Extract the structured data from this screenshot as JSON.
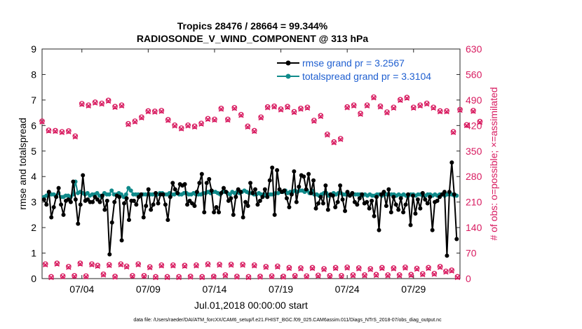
{
  "chart_data": {
    "type": "line",
    "title_line1": "Tropics 28476 / 28664 = 99.344%",
    "title_line2": "RADIOSONDE_V_WIND_COMPONENT @ 313 hPa",
    "xlabel": "Jul.01,2018 00:00:00 start",
    "ylabel_left": "rmse and totalspread",
    "ylabel_right": "# of obs: o=possible; ×=assimilated",
    "footer": "data file: /Users/raeder/DAI/ATM_forcXX/CAM6_setup/f.e21.FHIST_BGC.f09_025.CAM6assim.011/Diags_NTrS_2018-07/obs_diag_output.nc",
    "xlim": [
      1,
      32.5
    ],
    "ylim_left": [
      0,
      9
    ],
    "ylim_right": [
      0,
      630
    ],
    "x_ticks": [
      {
        "x": 4,
        "label": "07/04"
      },
      {
        "x": 9,
        "label": "07/09"
      },
      {
        "x": 14,
        "label": "07/14"
      },
      {
        "x": 19,
        "label": "07/19"
      },
      {
        "x": 24,
        "label": "07/24"
      },
      {
        "x": 29,
        "label": "07/29"
      }
    ],
    "y_ticks_left": [
      "0",
      "1",
      "2",
      "3",
      "4",
      "5",
      "6",
      "7",
      "8",
      "9"
    ],
    "y_ticks_right": [
      "0",
      "70",
      "140",
      "210",
      "280",
      "350",
      "420",
      "490",
      "560",
      "630"
    ],
    "colors": {
      "rmse": "#000000",
      "spread": "#0f8a8a",
      "obs": "#d81b60",
      "legend_text": "#1f5fd0"
    },
    "legend": [
      {
        "name": "rmse grand pr = 3.2567"
      },
      {
        "name": "totalspread grand pr = 3.3104"
      }
    ],
    "rmse": [
      3.1,
      2.9,
      3.4,
      2.4,
      2.8,
      3.2,
      3.55,
      2.9,
      2.5,
      3.05,
      3.1,
      3.0,
      3.8,
      3.1,
      2.15,
      2.9,
      4.05,
      3.05,
      3.1,
      3.0,
      3.0,
      3.2,
      3.1,
      3.0,
      3.25,
      2.7,
      3.05,
      0.95,
      2.2,
      3.0,
      3.25,
      3.2,
      1.5,
      2.95,
      3.15,
      2.3,
      3.05,
      3.05,
      2.9,
      3.2,
      3.3,
      2.4,
      2.85,
      3.5,
      2.7,
      2.9,
      3.35,
      2.95,
      3.3,
      3.3,
      2.9,
      2.3,
      3.2,
      3.75,
      3.5,
      3.35,
      3.7,
      3.65,
      3.7,
      2.9,
      3.05,
      2.95,
      2.85,
      3.4,
      3.75,
      4.1,
      2.6,
      3.75,
      3.9,
      3.45,
      2.6,
      2.8,
      2.6,
      3.35,
      3.55,
      3.4,
      3.05,
      3.15,
      2.5,
      3.2,
      3.5,
      3.4,
      2.4,
      3.0,
      2.85,
      3.75,
      3.35,
      3.5,
      2.9,
      3.05,
      3.2,
      3.5,
      3.2,
      3.85,
      4.35,
      2.5,
      4.25,
      3.5,
      3.4,
      3.45,
      3.15,
      2.8,
      3.3,
      4.2,
      3.0,
      3.6,
      4.05,
      4.0,
      3.5,
      4.1,
      3.35,
      3.85,
      2.75,
      2.95,
      3.2,
      2.95,
      3.65,
      2.7,
      3.3,
      3.25,
      2.8,
      3.0,
      3.65,
      3.1,
      2.65,
      3.4,
      3.25,
      3.35,
      3.0,
      2.9,
      3.15,
      3.3,
      2.95,
      3.0,
      2.75,
      3.05,
      2.45,
      3.2,
      1.9,
      3.3,
      3.4,
      2.85,
      3.5,
      2.6,
      3.2,
      2.9,
      2.7,
      3.15,
      2.6,
      2.9,
      3.3,
      2.1,
      3.25,
      2.55,
      3.1,
      2.75,
      3.35,
      3.1,
      2.95,
      3.2,
      1.9,
      3.0,
      3.05,
      3.2,
      3.3,
      3.4,
      0.9,
      3.4,
      4.55,
      3.3,
      1.55
    ],
    "spread": [
      3.2,
      3.25,
      3.35,
      3.3,
      3.3,
      3.25,
      3.35,
      3.2,
      3.2,
      3.25,
      3.25,
      3.2,
      3.3,
      3.8,
      3.35,
      3.4,
      3.35,
      3.3,
      3.35,
      3.25,
      3.3,
      3.3,
      3.35,
      3.25,
      3.2,
      3.35,
      3.3,
      3.3,
      3.45,
      3.3,
      3.3,
      3.35,
      3.3,
      3.2,
      3.3,
      3.55,
      3.45,
      3.3,
      3.3,
      3.3,
      3.25,
      3.3,
      3.3,
      3.3,
      3.3,
      3.3,
      3.3,
      3.3,
      3.35,
      3.35,
      3.3,
      3.3,
      3.35,
      3.3,
      3.3,
      3.35,
      3.3,
      3.3,
      3.35,
      3.35,
      3.3,
      3.3,
      3.35,
      3.3,
      3.3,
      3.3,
      3.35,
      3.35,
      3.4,
      3.35,
      3.4,
      3.4,
      3.35,
      3.3,
      3.4,
      3.4,
      3.35,
      3.3,
      3.4,
      3.35,
      3.4,
      3.35,
      3.4,
      3.45,
      3.4,
      3.35,
      3.35,
      3.3,
      3.3,
      3.35,
      3.3,
      3.3,
      3.25,
      3.3,
      3.3,
      3.3,
      3.35,
      3.35,
      3.4,
      3.4,
      3.45,
      3.35,
      3.4,
      3.4,
      3.45,
      3.4,
      3.45,
      3.45,
      3.4,
      3.45,
      3.35,
      3.45,
      3.3,
      3.3,
      3.25,
      3.3,
      3.35,
      3.35,
      3.25,
      3.3,
      3.35,
      3.3,
      3.35,
      3.35,
      3.3,
      3.3,
      3.3,
      3.3,
      3.3,
      3.3,
      3.3,
      3.3,
      3.25,
      3.3,
      3.25,
      3.3,
      3.25,
      3.25,
      3.3,
      3.3,
      3.25,
      3.35,
      3.3,
      3.3,
      3.3,
      3.3,
      3.25,
      3.3,
      3.25,
      3.3,
      3.25,
      3.25,
      3.3,
      3.3,
      3.25,
      3.3,
      3.3,
      3.25,
      3.25,
      3.3,
      3.3,
      3.25,
      3.3,
      3.25,
      3.3,
      3.3,
      3.25,
      3.3,
      3.3,
      3.3,
      3.25,
      3.25
    ],
    "obs_possible_00z": [
      432,
      407,
      406,
      403,
      405,
      391,
      480,
      476,
      484,
      481,
      489,
      472,
      476,
      425,
      432,
      443,
      460,
      459,
      461,
      436,
      421,
      413,
      421,
      418,
      426,
      439,
      437,
      467,
      437,
      469,
      450,
      418,
      406,
      443,
      471,
      473,
      465,
      472,
      458,
      467,
      470,
      434,
      447,
      396,
      375,
      384,
      471,
      476,
      453,
      476,
      498,
      473,
      457,
      470,
      491,
      497,
      470,
      476,
      481,
      470,
      460,
      460,
      403,
      464,
      422,
      461,
      431
    ],
    "obs_assim_00z": [
      430,
      405,
      404,
      401,
      403,
      389,
      478,
      474,
      482,
      479,
      487,
      470,
      474,
      423,
      430,
      441,
      458,
      457,
      459,
      434,
      419,
      411,
      419,
      416,
      424,
      437,
      435,
      465,
      435,
      467,
      448,
      416,
      404,
      441,
      469,
      471,
      463,
      470,
      456,
      465,
      468,
      432,
      445,
      394,
      373,
      382,
      469,
      474,
      451,
      474,
      496,
      471,
      455,
      468,
      489,
      495,
      468,
      474,
      479,
      468,
      458,
      458,
      401,
      462,
      420,
      459,
      429
    ],
    "obs_possible_12z": [
      40,
      5,
      42,
      7,
      33,
      8,
      42,
      7,
      40,
      36,
      12,
      38,
      6,
      40,
      34,
      8,
      40,
      8,
      32,
      5,
      37,
      5,
      37,
      5,
      36,
      6,
      37,
      5,
      40,
      6,
      39,
      10,
      39,
      6,
      39,
      5,
      37,
      6,
      33,
      7,
      34,
      6,
      30,
      8,
      29,
      7,
      30,
      9,
      27,
      8,
      30,
      8,
      31,
      10,
      29,
      10,
      27,
      11,
      30,
      10,
      29,
      10,
      31,
      11,
      28,
      13,
      30,
      14,
      33,
      20,
      23,
      5
    ],
    "obs_assim_12z": [
      38,
      3,
      40,
      5,
      31,
      6,
      40,
      5,
      38,
      34,
      10,
      36,
      4,
      38,
      32,
      6,
      38,
      6,
      30,
      3,
      35,
      3,
      35,
      3,
      34,
      4,
      35,
      3,
      38,
      4,
      37,
      8,
      37,
      4,
      37,
      3,
      35,
      4,
      31,
      5,
      32,
      4,
      28,
      6,
      27,
      5,
      28,
      7,
      25,
      6,
      28,
      6,
      29,
      8,
      27,
      8,
      25,
      9,
      28,
      8,
      27,
      8,
      29,
      9,
      26,
      11,
      28,
      12,
      31,
      18,
      21,
      3
    ]
  }
}
